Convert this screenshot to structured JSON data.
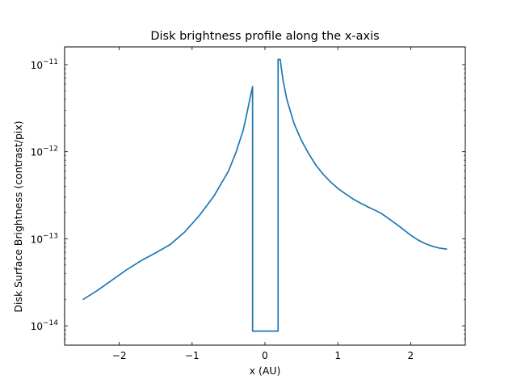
{
  "chart_data": {
    "type": "line",
    "title": "Disk brightness profile along the x-axis",
    "xlabel": "x (AU)",
    "ylabel": "Disk Surface Brightness (contrast/pix)",
    "xlim": [
      -2.75,
      2.75
    ],
    "ylim": [
      6e-15,
      1.6e-11
    ],
    "yscale": "log",
    "grid": false,
    "x_ticks": [
      -2,
      -1,
      0,
      1,
      2
    ],
    "x_tick_labels": [
      "−2",
      "−1",
      "0",
      "1",
      "2"
    ],
    "y_ticks": [
      1e-14,
      1e-13,
      1e-12,
      1e-11
    ],
    "y_tick_labels": [
      {
        "base": "10",
        "exp": "−14"
      },
      {
        "base": "10",
        "exp": "−13"
      },
      {
        "base": "10",
        "exp": "−12"
      },
      {
        "base": "10",
        "exp": "−11"
      }
    ],
    "color": "#1f77b4",
    "series": [
      {
        "x": [
          -2.5,
          -2.3,
          -2.1,
          -1.9,
          -1.7,
          -1.5,
          -1.3,
          -1.1,
          -0.9,
          -0.7,
          -0.5,
          -0.4,
          -0.3,
          -0.25,
          -0.2,
          -0.17,
          -0.17,
          0.18,
          0.18,
          0.21,
          0.22,
          0.25,
          0.3,
          0.4,
          0.5,
          0.6,
          0.7,
          0.8,
          0.9,
          1.0,
          1.1,
          1.2,
          1.3,
          1.4,
          1.5,
          1.6,
          1.7,
          1.8,
          1.9,
          2.0,
          2.1,
          2.2,
          2.3,
          2.4,
          2.5
        ],
        "y": [
          2e-14,
          2.55e-14,
          3.35e-14,
          4.4e-14,
          5.6e-14,
          6.9e-14,
          8.6e-14,
          1.2e-13,
          1.85e-13,
          3.1e-13,
          6e-13,
          9.7e-13,
          1.75e-12,
          2.7e-12,
          4.3e-12,
          5.6e-12,
          8.7e-15,
          8.7e-15,
          1.15e-11,
          1.15e-11,
          9.7e-12,
          6.5e-12,
          4e-12,
          2.1e-12,
          1.35e-12,
          9.5e-13,
          7e-13,
          5.5e-13,
          4.5e-13,
          3.8e-13,
          3.3e-13,
          2.9e-13,
          2.6e-13,
          2.35e-13,
          2.15e-13,
          1.95e-13,
          1.7e-13,
          1.48e-13,
          1.28e-13,
          1.1e-13,
          9.7e-14,
          8.8e-14,
          8.2e-14,
          7.8e-14,
          7.6e-14
        ]
      }
    ]
  }
}
